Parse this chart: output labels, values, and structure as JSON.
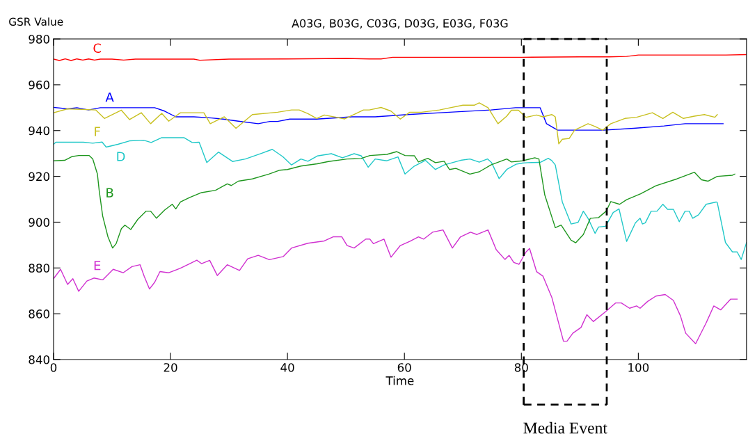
{
  "chart_data": {
    "type": "line",
    "title": "A03G, B03G, C03G, D03G, E03G, F03G",
    "xlabel": "Time",
    "ylabel": "GSR Value",
    "xlim": [
      0,
      118.5
    ],
    "ylim": [
      840,
      980
    ],
    "xticks": [
      0,
      20,
      40,
      60,
      80,
      100
    ],
    "yticks": [
      840,
      860,
      880,
      900,
      920,
      940,
      960,
      980
    ],
    "grid": false,
    "legend": false,
    "marker": "none",
    "line_style": "solid",
    "ref_lines": [
      {
        "axis": "x",
        "value": 80.4,
        "label": "Media Event",
        "color": "#000000",
        "line_style": "dashed"
      },
      {
        "axis": "x",
        "value": 94.6,
        "color": "#000000",
        "line_style": "dashed"
      }
    ],
    "series": [
      {
        "name": "C",
        "color": "#ff0000",
        "x": [
          0,
          1,
          2,
          3,
          4,
          5,
          6,
          7,
          8,
          10,
          12,
          14,
          20,
          24,
          25,
          30,
          40,
          50,
          54,
          56,
          58,
          65,
          70,
          80,
          90,
          95,
          98,
          100,
          105,
          110,
          115,
          118.5
        ],
        "values": [
          971.2,
          970.6,
          971.3,
          970.6,
          971.3,
          970.8,
          971.3,
          970.8,
          971.2,
          971.2,
          970.8,
          971.2,
          971.2,
          971.2,
          970.7,
          971.2,
          971.3,
          971.5,
          971.3,
          971.3,
          972,
          972,
          972,
          972,
          972.2,
          972.2,
          972.4,
          973,
          973,
          973,
          973,
          973.2
        ]
      },
      {
        "name": "A",
        "color": "#0000ff",
        "x": [
          0,
          2.4,
          4,
          6,
          8,
          10,
          17.3,
          19,
          20.9,
          24,
          27,
          29,
          31.6,
          35,
          37,
          38.3,
          40.4,
          45,
          51,
          55,
          60.5,
          67.7,
          74.8,
          79,
          83.2,
          84.3,
          86.2,
          90,
          94.1,
          99.2,
          104.4,
          108,
          112,
          114.5
        ],
        "values": [
          950.1,
          949.5,
          950,
          949,
          950,
          950,
          950,
          948.5,
          946,
          946,
          945.5,
          945,
          944.1,
          943,
          944,
          944,
          945,
          945,
          946,
          946,
          947,
          948,
          949,
          950,
          950,
          943,
          940.2,
          940.2,
          940.2,
          941,
          942,
          943,
          943,
          943
        ]
      },
      {
        "name": "F",
        "color": "#c8c020",
        "x": [
          0,
          2.4,
          7.2,
          8.7,
          11.6,
          13,
          15,
          16.6,
          18.5,
          19.7,
          21.7,
          25.7,
          26.8,
          29.2,
          31.2,
          34,
          38.3,
          40.7,
          42,
          43.5,
          45,
          46.3,
          49.8,
          53,
          54,
          56,
          57.7,
          59.3,
          60.9,
          62.9,
          66,
          67.7,
          70,
          72,
          72.8,
          74.3,
          76,
          77.5,
          78.3,
          79.5,
          80.8,
          82.6,
          83.7,
          85.2,
          85.8,
          86.4,
          87,
          88.2,
          89.1,
          91.4,
          92.6,
          93.9,
          94.7,
          95.3,
          97.7,
          99.7,
          102.4,
          104.2,
          105.9,
          107.7,
          109.6,
          111.3,
          113.1,
          113.5
        ],
        "values": [
          947.8,
          949.5,
          949,
          945.3,
          948.9,
          944.8,
          947.8,
          943,
          947.5,
          944.1,
          947.8,
          947.8,
          943,
          946,
          941,
          947,
          948,
          949,
          949,
          947.4,
          945.3,
          946.8,
          945.1,
          949,
          949,
          950.1,
          948.5,
          945,
          948,
          948,
          949,
          949.9,
          951.1,
          951.1,
          952.1,
          950,
          943,
          946.3,
          948.9,
          948.9,
          945.8,
          946.8,
          946,
          947,
          946,
          934.2,
          936.2,
          936.6,
          940.2,
          943,
          941.8,
          940.2,
          941.8,
          943,
          945.3,
          945.8,
          947.8,
          945.3,
          948,
          945.3,
          946.3,
          947,
          945.8,
          947
        ]
      },
      {
        "name": "D",
        "color": "#20c8c8",
        "x": [
          0,
          0.4,
          5.1,
          6.7,
          8.3,
          9,
          11,
          13,
          15.4,
          16.7,
          18.5,
          22.3,
          23.7,
          24.9,
          26.2,
          28.2,
          30.6,
          32.8,
          35.6,
          37.4,
          39.2,
          40.7,
          42.3,
          43.5,
          45.1,
          47.5,
          49.4,
          51.4,
          52.6,
          53.8,
          55,
          57,
          58.9,
          60.1,
          61.7,
          63.6,
          65.3,
          66.8,
          69.6,
          71.2,
          72.8,
          74.2,
          74.9,
          76.2,
          77.5,
          79.1,
          80.2,
          81.1,
          83.2,
          84.6,
          85.2,
          85.8,
          87,
          88.5,
          89.7,
          90.6,
          91.4,
          92.6,
          93.2,
          94.4,
          95.7,
          96.7,
          98,
          99.5,
          100.3,
          100.7,
          101.2,
          102.2,
          103.2,
          104.2,
          105,
          106,
          107,
          108,
          108.7,
          109.3,
          110.3,
          111.6,
          113.3,
          113.5,
          114.9,
          116.1,
          116.9,
          117.6,
          118.5
        ],
        "values": [
          934,
          934.9,
          934.9,
          934.5,
          935,
          932.8,
          934,
          935.5,
          935.8,
          934.8,
          936.9,
          936.9,
          934.8,
          934.9,
          926,
          930.6,
          926.5,
          927.6,
          930.1,
          931.8,
          928.6,
          925,
          927.6,
          926.6,
          928.9,
          929.9,
          928.1,
          929.9,
          929,
          924,
          927.6,
          926.8,
          928.5,
          921,
          924.5,
          927,
          923,
          925,
          927,
          927.6,
          926.2,
          927.6,
          926,
          919,
          923,
          925.3,
          925.8,
          926,
          926.1,
          927.9,
          926.9,
          925,
          908.8,
          899.2,
          899.9,
          904.8,
          901.7,
          895.1,
          897.9,
          898.2,
          904.2,
          905.8,
          891.6,
          899.7,
          901.7,
          899.2,
          899.7,
          904.8,
          904.8,
          907.8,
          905.6,
          905.6,
          900.2,
          904.8,
          904.8,
          901.7,
          903.2,
          907.8,
          908.8,
          908.6,
          891.1,
          887,
          887,
          883.7,
          891.1
        ]
      },
      {
        "name": "B",
        "color": "#1e961e",
        "x": [
          0,
          1.9,
          3.1,
          4.3,
          6.1,
          6.7,
          7.5,
          7.8,
          8.4,
          9.3,
          10.1,
          10.7,
          11.6,
          12.2,
          13.2,
          14.4,
          15.8,
          16.6,
          17.6,
          19,
          20.3,
          20.9,
          21.7,
          23.3,
          25.3,
          27.7,
          29.7,
          30.4,
          31.6,
          34,
          36.8,
          38.7,
          40,
          42.3,
          45.1,
          47,
          50.2,
          52.6,
          54.1,
          57,
          58.7,
          60.1,
          61.7,
          62.4,
          64,
          65.3,
          66.8,
          67.7,
          68.8,
          71.2,
          72.8,
          74.8,
          77.5,
          78.3,
          80.2,
          82.3,
          83,
          84,
          85.8,
          86.8,
          88.5,
          89.3,
          90.6,
          91.8,
          93.2,
          94.5,
          95.3,
          96.8,
          98,
          100.4,
          103,
          106.6,
          109.6,
          110.8,
          111.9,
          113.5,
          116.1,
          116.5
        ],
        "values": [
          926.8,
          927,
          928.6,
          929.1,
          929.1,
          927.6,
          921,
          913.9,
          902.7,
          893.6,
          888.7,
          890.6,
          897.2,
          898.7,
          896.8,
          901.2,
          904.8,
          904.8,
          901.7,
          905.3,
          907.8,
          905.8,
          908.8,
          910.8,
          912.9,
          913.9,
          916.7,
          916,
          917.9,
          918.9,
          921,
          922.7,
          923,
          924.5,
          925.5,
          926.5,
          927.6,
          927.8,
          929.1,
          929.6,
          930.8,
          929.1,
          929,
          926.3,
          927.9,
          926,
          926.6,
          923,
          923.5,
          921,
          922,
          925,
          927.6,
          926.3,
          926.8,
          928.1,
          927.6,
          911.9,
          897.6,
          898.7,
          892.1,
          891,
          894.6,
          901.7,
          902,
          904.8,
          909,
          907.8,
          909.8,
          912.4,
          915.9,
          918.9,
          921.8,
          918.5,
          917.9,
          920,
          920.5,
          921
        ]
      },
      {
        "name": "E",
        "color": "#d030d0",
        "x": [
          0,
          1.2,
          2.4,
          3.3,
          4.3,
          5.7,
          6.9,
          8.4,
          10.2,
          11.9,
          13.4,
          14.8,
          15.5,
          16.4,
          17.3,
          18.2,
          19.7,
          21.7,
          23.3,
          24.5,
          25.3,
          26.7,
          28,
          29.7,
          31.8,
          33.2,
          35,
          36.9,
          39.3,
          40.7,
          43.5,
          46.3,
          47.8,
          49.3,
          50.2,
          51.4,
          53.4,
          54.1,
          54.7,
          56.5,
          57.7,
          59.3,
          60.9,
          62.4,
          63.3,
          64.8,
          66.6,
          68.2,
          69.6,
          71.3,
          72.4,
          74.3,
          75.7,
          77.2,
          77.9,
          78.7,
          79.6,
          80.8,
          81.4,
          82.6,
          83.7,
          85.2,
          87.2,
          87.8,
          88.8,
          90.2,
          91.2,
          92.3,
          94.5,
          96.1,
          97.1,
          98.5,
          99.7,
          100.3,
          101.6,
          103,
          104.6,
          106,
          107.2,
          108.1,
          109.8,
          111.6,
          112.9,
          114.1,
          115.8,
          116.9
        ],
        "values": [
          875.3,
          879.4,
          872.8,
          875.3,
          869.8,
          874.3,
          875.6,
          874.8,
          879.4,
          877.9,
          880.6,
          881.4,
          876.4,
          870.8,
          873.8,
          878.4,
          877.9,
          879.9,
          881.9,
          883.4,
          881.9,
          883.3,
          876.7,
          881.4,
          878.9,
          884,
          885.5,
          883.6,
          885,
          888.7,
          890.8,
          891.8,
          893.6,
          893.6,
          889.8,
          888.7,
          892.6,
          892.6,
          890.6,
          892.6,
          884.7,
          889.8,
          891.6,
          893.6,
          892.6,
          895.6,
          896.6,
          888.7,
          893.6,
          895.6,
          894.6,
          896.6,
          888,
          883.7,
          885.5,
          882.4,
          881.6,
          887,
          888.5,
          878.4,
          876.4,
          867.2,
          848,
          848,
          851.5,
          854,
          859.6,
          856.6,
          861.1,
          864.7,
          864.7,
          862.4,
          863.4,
          862.4,
          865.4,
          867.7,
          868.4,
          865.8,
          859.1,
          851.5,
          846.9,
          856,
          863.4,
          861.7,
          866.4,
          866.4
        ]
      }
    ]
  }
}
